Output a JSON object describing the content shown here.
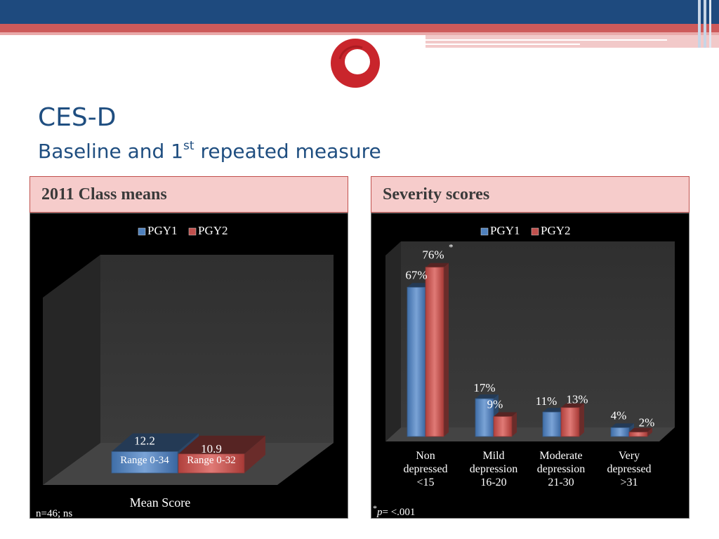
{
  "slide": {
    "title": "CES-D",
    "subtitle_pre": "Baseline and 1",
    "subtitle_sup": "st",
    "subtitle_post": " repeated measure"
  },
  "colors": {
    "navy": "#1e4a7e",
    "brand_red": "#c9252c",
    "pgy1_blue": "#4f81bd",
    "pgy2_red": "#c0504d",
    "header_pink": "#f6cccb"
  },
  "left_panel": {
    "header": "2011 Class means",
    "footnote": "n=46; ns"
  },
  "right_panel": {
    "header": "Severity scores",
    "footnote_star": "*",
    "footnote_p": "p",
    "footnote_rest": "= <.001"
  },
  "chart_data": [
    {
      "type": "bar",
      "categories": [
        "Mean Score"
      ],
      "series": [
        {
          "name": "PGY1",
          "values": [
            12.2
          ],
          "bar_text": "Range 0-34"
        },
        {
          "name": "PGY2",
          "values": [
            10.9
          ],
          "bar_text": "Range 0-32"
        }
      ],
      "data_labels": [
        "12.2",
        "10.9"
      ],
      "legend": "top-center",
      "ylim": [
        0,
        100
      ],
      "grid": false,
      "style": "3d"
    },
    {
      "type": "bar",
      "categories": [
        [
          "Non",
          "depressed",
          "<15"
        ],
        [
          "Mild",
          "depression",
          "16-20"
        ],
        [
          "Moderate",
          "depression",
          "21-30"
        ],
        [
          "Very",
          "depressed",
          ">31"
        ]
      ],
      "series": [
        {
          "name": "PGY1",
          "values": [
            67,
            17,
            11,
            4
          ],
          "labels": [
            "67%",
            "17%",
            "11%",
            "4%"
          ]
        },
        {
          "name": "PGY2",
          "values": [
            76,
            9,
            13,
            2
          ],
          "labels": [
            "76%",
            "9%",
            "13%",
            "2%"
          ]
        }
      ],
      "annotation": "*",
      "legend": "top-center",
      "ylim": [
        0,
        80
      ],
      "unit": "%",
      "grid": false,
      "style": "3d"
    }
  ]
}
